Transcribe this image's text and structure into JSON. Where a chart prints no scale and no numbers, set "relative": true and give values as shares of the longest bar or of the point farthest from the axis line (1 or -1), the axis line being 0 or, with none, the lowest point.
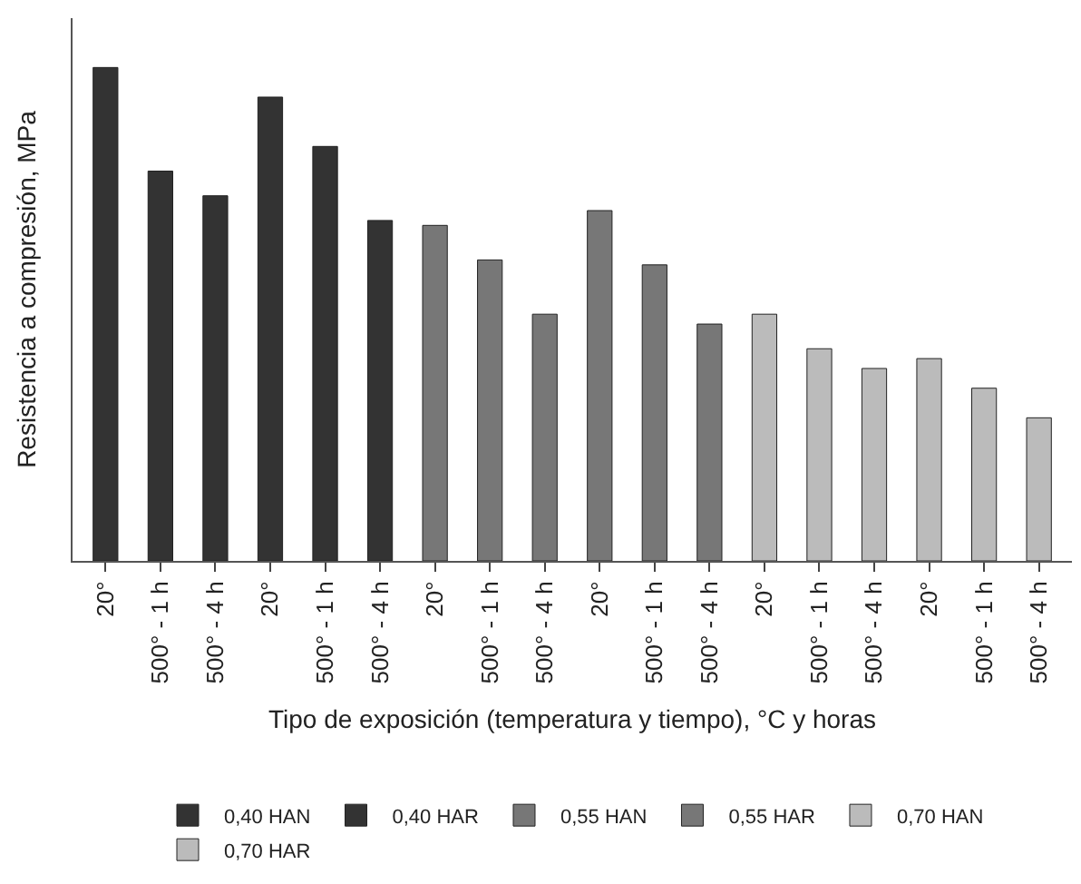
{
  "chart_data": {
    "type": "bar",
    "relative": true,
    "xlabel": "Tipo de exposición (temperatura y tiempo), °C y horas",
    "ylabel": "Resistencia a compresión, MPa",
    "categories": [
      "20°",
      "500° - 1 h",
      "500° - 4 h",
      "20°",
      "500° - 1 h",
      "500° - 4 h",
      "20°",
      "500° - 1 h",
      "500° - 4 h",
      "20°",
      "500° - 1 h",
      "500° - 4 h",
      "20°",
      "500° - 1 h",
      "500° - 4 h",
      "20°",
      "500° - 1 h",
      "500° - 4 h"
    ],
    "series": [
      {
        "name": "0,40 HAN",
        "color": "#333333",
        "values": [
          1,
          0.79,
          0.74,
          null,
          null,
          null,
          null,
          null,
          null,
          null,
          null,
          null,
          null,
          null,
          null,
          null,
          null,
          null
        ]
      },
      {
        "name": "0,40 HAR",
        "color": "#333333",
        "values": [
          null,
          null,
          null,
          0.94,
          0.84,
          0.69,
          null,
          null,
          null,
          null,
          null,
          null,
          null,
          null,
          null,
          null,
          null,
          null
        ]
      },
      {
        "name": "0,55 HAN",
        "color": "#777777",
        "values": [
          null,
          null,
          null,
          null,
          null,
          null,
          0.68,
          0.61,
          0.5,
          null,
          null,
          null,
          null,
          null,
          null,
          null,
          null,
          null
        ]
      },
      {
        "name": "0,55 HAR",
        "color": "#777777",
        "values": [
          null,
          null,
          null,
          null,
          null,
          null,
          null,
          null,
          null,
          0.71,
          0.6,
          0.48,
          null,
          null,
          null,
          null,
          null,
          null
        ]
      },
      {
        "name": "0,70 HAN",
        "color": "#bbbbbb",
        "values": [
          null,
          null,
          null,
          null,
          null,
          null,
          null,
          null,
          null,
          null,
          null,
          null,
          0.5,
          0.43,
          0.39,
          null,
          null,
          null
        ]
      },
      {
        "name": "0,70 HAR",
        "color": "#bbbbbb",
        "values": [
          null,
          null,
          null,
          null,
          null,
          null,
          null,
          null,
          null,
          null,
          null,
          null,
          null,
          null,
          null,
          0.41,
          0.35,
          0.29
        ]
      }
    ],
    "legend": "bottom"
  }
}
